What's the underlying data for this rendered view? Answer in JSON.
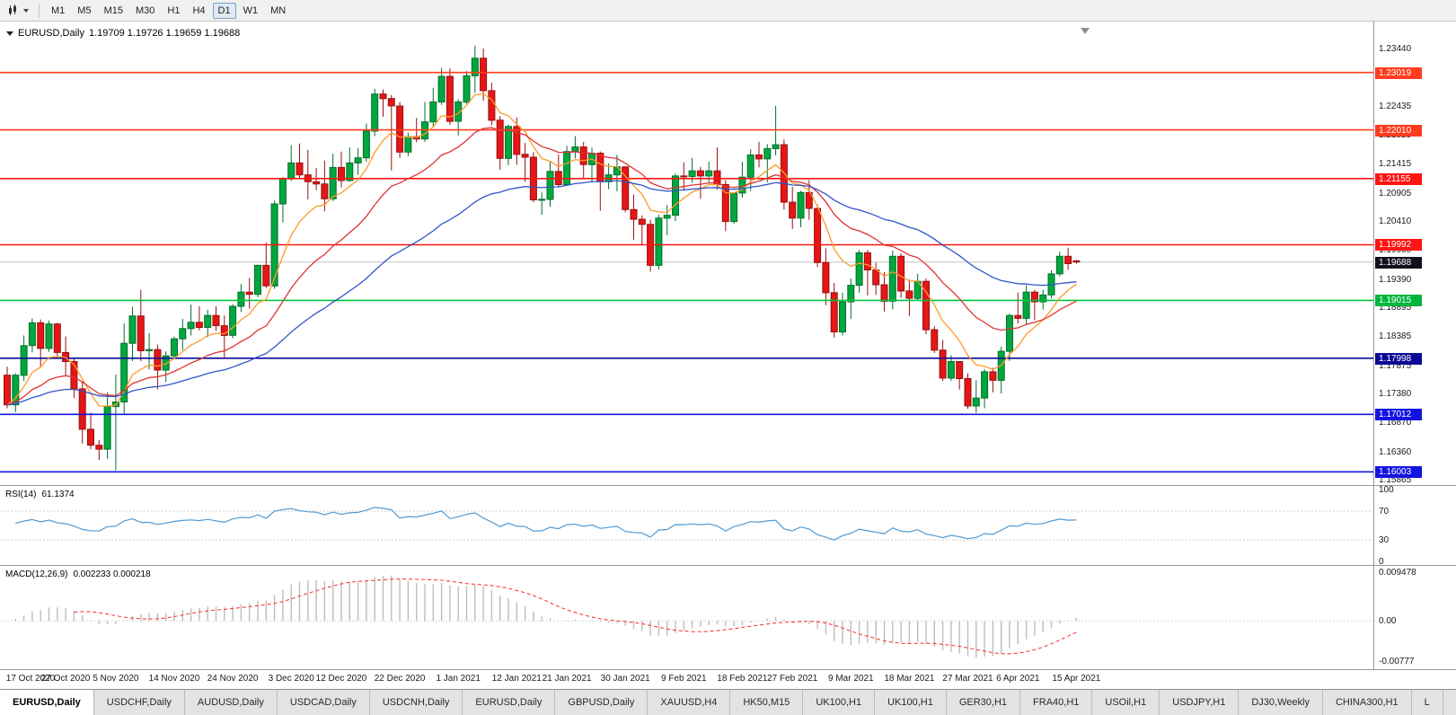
{
  "toolbar": {
    "chart_type_icon": "candlestick-chart-icon",
    "timeframes": [
      "M1",
      "M5",
      "M15",
      "M30",
      "H1",
      "H4",
      "D1",
      "W1",
      "MN"
    ],
    "active_timeframe": "D1"
  },
  "main_pane": {
    "title": {
      "symbol": "EURUSD,Daily",
      "ohlc": "1.19709 1.19726 1.19659 1.19688"
    },
    "shift_marker_icon": "chart-shift-arrow-icon"
  },
  "price_axis": {
    "ticks": [
      "1.23440",
      "1.22435",
      "1.21925",
      "1.21415",
      "1.20905",
      "1.20410",
      "1.19900",
      "1.19390",
      "1.18895",
      "1.18385",
      "1.17875",
      "1.17380",
      "1.16870",
      "1.16360",
      "1.15865"
    ],
    "badges": [
      {
        "text": "1.23019",
        "price": 1.23019,
        "bg": "#ff3c1e"
      },
      {
        "text": "1.22010",
        "price": 1.2201,
        "bg": "#ff3c1e"
      },
      {
        "text": "1.21155",
        "price": 1.21155,
        "bg": "#ff1414"
      },
      {
        "text": "1.19992",
        "price": 1.19992,
        "bg": "#ff1414"
      },
      {
        "text": "1.19688",
        "price": 1.19688,
        "bg": "#10101e",
        "current": true
      },
      {
        "text": "1.19015",
        "price": 1.19015,
        "bg": "#00b43c"
      },
      {
        "text": "1.17998",
        "price": 1.17998,
        "bg": "#0a0a96"
      },
      {
        "text": "1.17012",
        "price": 1.17012,
        "bg": "#1414e0"
      },
      {
        "text": "1.16003",
        "price": 1.16003,
        "bg": "#1414e0"
      }
    ]
  },
  "rsi_pane": {
    "label": "RSI(14)",
    "value": "61.1374",
    "axis": [
      "100",
      "70",
      "30",
      "0"
    ],
    "levels": [
      70,
      30
    ],
    "line_color": "#4f9bd5"
  },
  "macd_pane": {
    "label": "MACD(12,26,9)",
    "values": "0.002233 0.000218",
    "axis_top": "0.009478",
    "axis_zero": "0.00",
    "axis_bottom": "-0.00777",
    "histogram_color": "#bdbdbd",
    "signal_color": "#ff2828"
  },
  "tabs": {
    "active_index": 0,
    "items": [
      "EURUSD,Daily",
      "USDCHF,Daily",
      "AUDUSD,Daily",
      "USDCAD,Daily",
      "USDCNH,Daily",
      "EURUSD,Daily",
      "GBPUSD,Daily",
      "XAUUSD,H4",
      "HK50,M15",
      "UK100,H1",
      "UK100,H1",
      "GER30,H1",
      "FRA40,H1",
      "USOil,H1",
      "USDJPY,H1",
      "DJ30,Weekly",
      "CHINA300,H1",
      "L"
    ]
  },
  "chart_data": {
    "type": "candlestick",
    "symbol": "EURUSD",
    "timeframe": "Daily",
    "title": "EURUSD,Daily",
    "x_range": [
      "17 Oct 2020",
      "15 Apr 2021"
    ],
    "y_range": [
      1.1565,
      1.2385
    ],
    "current_price": 1.19688,
    "colors": {
      "up": "#00a63e",
      "up_border": "#00702a",
      "down": "#e51616",
      "down_border": "#9a0f0f"
    },
    "ma": [
      {
        "name": "ma-fast",
        "period": 8,
        "color": "#ff9a28"
      },
      {
        "name": "ma-medium",
        "period": 20,
        "color": "#e03232"
      },
      {
        "name": "ma-slow",
        "period": 45,
        "color": "#2f55c8"
      }
    ],
    "indicators": {
      "rsi_period": 14,
      "macd_params": [
        12,
        26,
        9
      ]
    },
    "levels": [
      {
        "price": 1.23019,
        "color": "#ff3c1e"
      },
      {
        "price": 1.2201,
        "color": "#ff3c1e"
      },
      {
        "price": 1.21155,
        "color": "#ff1414"
      },
      {
        "price": 1.19992,
        "color": "#ff1414"
      },
      {
        "price": 1.19015,
        "color": "#00c33c"
      },
      {
        "price": 1.17998,
        "color": "#0a0a96"
      },
      {
        "price": 1.17012,
        "color": "#1414e0"
      },
      {
        "price": 1.16003,
        "color": "#1414e0"
      }
    ],
    "time_labels": [
      {
        "text": "17 Oct 2020",
        "i": 0
      },
      {
        "text": "27 Oct 2020",
        "i": 7
      },
      {
        "text": "5 Nov 2020",
        "i": 13
      },
      {
        "text": "14 Nov 2020",
        "i": 20
      },
      {
        "text": "24 Nov 2020",
        "i": 27
      },
      {
        "text": "3 Dec 2020",
        "i": 34
      },
      {
        "text": "12 Dec 2020",
        "i": 40
      },
      {
        "text": "22 Dec 2020",
        "i": 47
      },
      {
        "text": "1 Jan 2021",
        "i": 54
      },
      {
        "text": "12 Jan 2021",
        "i": 61
      },
      {
        "text": "21 Jan 2021",
        "i": 67
      },
      {
        "text": "30 Jan 2021",
        "i": 74
      },
      {
        "text": "9 Feb 2021",
        "i": 81
      },
      {
        "text": "18 Feb 2021",
        "i": 88
      },
      {
        "text": "27 Feb 2021",
        "i": 94
      },
      {
        "text": "9 Mar 2021",
        "i": 101
      },
      {
        "text": "18 Mar 2021",
        "i": 108
      },
      {
        "text": "27 Mar 2021",
        "i": 115
      },
      {
        "text": "6 Apr 2021",
        "i": 121
      },
      {
        "text": "15 Apr 2021",
        "i": 128
      }
    ],
    "candles": [
      [
        1.177,
        1.1785,
        1.1712,
        1.1718
      ],
      [
        1.1718,
        1.1773,
        1.1705,
        1.177
      ],
      [
        1.177,
        1.184,
        1.176,
        1.1822
      ],
      [
        1.1822,
        1.187,
        1.181,
        1.1862
      ],
      [
        1.1862,
        1.1868,
        1.1786,
        1.1817
      ],
      [
        1.1817,
        1.1866,
        1.1811,
        1.186
      ],
      [
        1.186,
        1.1862,
        1.18,
        1.181
      ],
      [
        1.181,
        1.1838,
        1.177,
        1.1794
      ],
      [
        1.1794,
        1.18,
        1.173,
        1.1746
      ],
      [
        1.1746,
        1.1759,
        1.165,
        1.1675
      ],
      [
        1.1675,
        1.1704,
        1.164,
        1.1647
      ],
      [
        1.1647,
        1.1656,
        1.1621,
        1.164
      ],
      [
        1.164,
        1.174,
        1.1623,
        1.1715
      ],
      [
        1.1715,
        1.1771,
        1.1603,
        1.1723
      ],
      [
        1.1723,
        1.1861,
        1.1701,
        1.1826
      ],
      [
        1.1826,
        1.189,
        1.1795,
        1.1874
      ],
      [
        1.1874,
        1.192,
        1.1795,
        1.1813
      ],
      [
        1.1813,
        1.1844,
        1.178,
        1.1815
      ],
      [
        1.1815,
        1.1824,
        1.1745,
        1.1779
      ],
      [
        1.1779,
        1.1812,
        1.1758,
        1.1804
      ],
      [
        1.1804,
        1.1838,
        1.1799,
        1.1834
      ],
      [
        1.1834,
        1.1869,
        1.1814,
        1.1852
      ],
      [
        1.1852,
        1.1894,
        1.184,
        1.1863
      ],
      [
        1.1863,
        1.1891,
        1.1849,
        1.1854
      ],
      [
        1.1854,
        1.1885,
        1.1837,
        1.1875
      ],
      [
        1.1875,
        1.1891,
        1.1848,
        1.1857
      ],
      [
        1.1857,
        1.1875,
        1.18,
        1.184
      ],
      [
        1.184,
        1.1895,
        1.1835,
        1.1891
      ],
      [
        1.1891,
        1.193,
        1.1881,
        1.1916
      ],
      [
        1.1916,
        1.1941,
        1.1887,
        1.1912
      ],
      [
        1.1912,
        1.1964,
        1.1907,
        1.1963
      ],
      [
        1.1963,
        1.2003,
        1.1923,
        1.1927
      ],
      [
        1.1927,
        1.2077,
        1.1922,
        1.2071
      ],
      [
        1.2071,
        1.2118,
        1.2039,
        1.2115
      ],
      [
        1.2115,
        1.2174,
        1.2111,
        1.2143
      ],
      [
        1.2143,
        1.2177,
        1.2115,
        1.2122
      ],
      [
        1.2122,
        1.2166,
        1.2079,
        1.211
      ],
      [
        1.211,
        1.2134,
        1.2095,
        1.2106
      ],
      [
        1.2106,
        1.2147,
        1.2058,
        1.208
      ],
      [
        1.208,
        1.2159,
        1.2076,
        1.2135
      ],
      [
        1.2135,
        1.2163,
        1.21,
        1.2112
      ],
      [
        1.2112,
        1.217,
        1.211,
        1.2143
      ],
      [
        1.2143,
        1.2169,
        1.2122,
        1.2152
      ],
      [
        1.2152,
        1.2212,
        1.2145,
        1.2199
      ],
      [
        1.2199,
        1.2273,
        1.219,
        1.2264
      ],
      [
        1.2264,
        1.2272,
        1.2224,
        1.2256
      ],
      [
        1.2256,
        1.2262,
        1.213,
        1.2243
      ],
      [
        1.2243,
        1.225,
        1.2152,
        1.2162
      ],
      [
        1.2162,
        1.2196,
        1.2155,
        1.2189
      ],
      [
        1.2189,
        1.2222,
        1.2179,
        1.2185
      ],
      [
        1.2185,
        1.225,
        1.218,
        1.2215
      ],
      [
        1.2215,
        1.2275,
        1.2205,
        1.225
      ],
      [
        1.225,
        1.231,
        1.2245,
        1.2295
      ],
      [
        1.2295,
        1.2309,
        1.221,
        1.2216
      ],
      [
        1.2216,
        1.2255,
        1.2191,
        1.225
      ],
      [
        1.225,
        1.2304,
        1.2247,
        1.2296
      ],
      [
        1.2296,
        1.2349,
        1.2266,
        1.2327
      ],
      [
        1.2327,
        1.2344,
        1.2252,
        1.227
      ],
      [
        1.227,
        1.2284,
        1.2209,
        1.2218
      ],
      [
        1.2218,
        1.2225,
        1.2131,
        1.2151
      ],
      [
        1.2151,
        1.221,
        1.2139,
        1.2207
      ],
      [
        1.2207,
        1.2223,
        1.214,
        1.2158
      ],
      [
        1.2158,
        1.2178,
        1.211,
        1.2153
      ],
      [
        1.2153,
        1.2162,
        1.2074,
        1.2078
      ],
      [
        1.2078,
        1.2091,
        1.2052,
        1.2079
      ],
      [
        1.2079,
        1.2145,
        1.2066,
        1.2128
      ],
      [
        1.2128,
        1.2158,
        1.21,
        1.2105
      ],
      [
        1.2105,
        1.2173,
        1.2103,
        1.2163
      ],
      [
        1.2163,
        1.219,
        1.2151,
        1.2171
      ],
      [
        1.2171,
        1.218,
        1.2116,
        1.214
      ],
      [
        1.214,
        1.217,
        1.2108,
        1.216
      ],
      [
        1.216,
        1.2163,
        1.2059,
        1.211
      ],
      [
        1.211,
        1.2142,
        1.2097,
        1.2122
      ],
      [
        1.2122,
        1.2157,
        1.2093,
        1.2136
      ],
      [
        1.2136,
        1.2137,
        1.2056,
        1.2061
      ],
      [
        1.2061,
        1.2087,
        1.2008,
        1.2044
      ],
      [
        1.2044,
        1.2051,
        1.1999,
        1.2035
      ],
      [
        1.2035,
        1.2043,
        1.1952,
        1.1963
      ],
      [
        1.1963,
        1.2052,
        1.1956,
        1.2046
      ],
      [
        1.2046,
        1.2069,
        1.2016,
        1.2051
      ],
      [
        1.2051,
        1.2124,
        1.2041,
        1.212
      ],
      [
        1.212,
        1.2144,
        1.2094,
        1.2119
      ],
      [
        1.2119,
        1.2152,
        1.2108,
        1.2129
      ],
      [
        1.2129,
        1.2136,
        1.208,
        1.212
      ],
      [
        1.212,
        1.2145,
        1.2109,
        1.2129
      ],
      [
        1.2129,
        1.217,
        1.2096,
        1.2105
      ],
      [
        1.2105,
        1.2113,
        1.2023,
        1.204
      ],
      [
        1.204,
        1.2091,
        1.2036,
        1.209
      ],
      [
        1.209,
        1.2145,
        1.2082,
        1.2118
      ],
      [
        1.2118,
        1.2167,
        1.2094,
        1.2157
      ],
      [
        1.2157,
        1.218,
        1.2135,
        1.215
      ],
      [
        1.215,
        1.2176,
        1.2109,
        1.2168
      ],
      [
        1.2168,
        1.2243,
        1.2156,
        1.2175
      ],
      [
        1.2175,
        1.2184,
        1.2061,
        1.2074
      ],
      [
        1.2074,
        1.2101,
        1.2027,
        1.2046
      ],
      [
        1.2046,
        1.2094,
        1.203,
        1.2091
      ],
      [
        1.2091,
        1.2113,
        1.2043,
        1.2063
      ],
      [
        1.2063,
        1.207,
        1.196,
        1.1968
      ],
      [
        1.1968,
        1.1993,
        1.1893,
        1.1915
      ],
      [
        1.1915,
        1.1932,
        1.1836,
        1.1846
      ],
      [
        1.1846,
        1.1915,
        1.184,
        1.1899
      ],
      [
        1.1899,
        1.194,
        1.1869,
        1.1928
      ],
      [
        1.1928,
        1.199,
        1.1915,
        1.1985
      ],
      [
        1.1985,
        1.199,
        1.191,
        1.1955
      ],
      [
        1.1955,
        1.1968,
        1.1911,
        1.1929
      ],
      [
        1.1929,
        1.1951,
        1.1882,
        1.19
      ],
      [
        1.19,
        1.1989,
        1.1886,
        1.1979
      ],
      [
        1.1979,
        1.1984,
        1.1906,
        1.1918
      ],
      [
        1.1918,
        1.1938,
        1.1874,
        1.1905
      ],
      [
        1.1905,
        1.1948,
        1.1901,
        1.1935
      ],
      [
        1.1935,
        1.194,
        1.1842,
        1.185
      ],
      [
        1.185,
        1.1856,
        1.1809,
        1.1814
      ],
      [
        1.1814,
        1.1832,
        1.176,
        1.1765
      ],
      [
        1.1765,
        1.1805,
        1.176,
        1.1794
      ],
      [
        1.1794,
        1.1795,
        1.1745,
        1.1764
      ],
      [
        1.1764,
        1.1773,
        1.1711,
        1.1716
      ],
      [
        1.1716,
        1.1761,
        1.1704,
        1.173
      ],
      [
        1.173,
        1.1781,
        1.1712,
        1.1776
      ],
      [
        1.1776,
        1.1783,
        1.174,
        1.1761
      ],
      [
        1.1761,
        1.182,
        1.1738,
        1.1812
      ],
      [
        1.1812,
        1.1878,
        1.1795,
        1.1875
      ],
      [
        1.1875,
        1.1915,
        1.1861,
        1.187
      ],
      [
        1.187,
        1.1928,
        1.186,
        1.1916
      ],
      [
        1.1916,
        1.192,
        1.1867,
        1.1899
      ],
      [
        1.1899,
        1.192,
        1.1885,
        1.1911
      ],
      [
        1.1911,
        1.1954,
        1.1905,
        1.1948
      ],
      [
        1.1948,
        1.1987,
        1.1944,
        1.1979
      ],
      [
        1.1979,
        1.1994,
        1.1955,
        1.1966
      ],
      [
        1.19709,
        1.19726,
        1.19659,
        1.19688
      ]
    ]
  }
}
